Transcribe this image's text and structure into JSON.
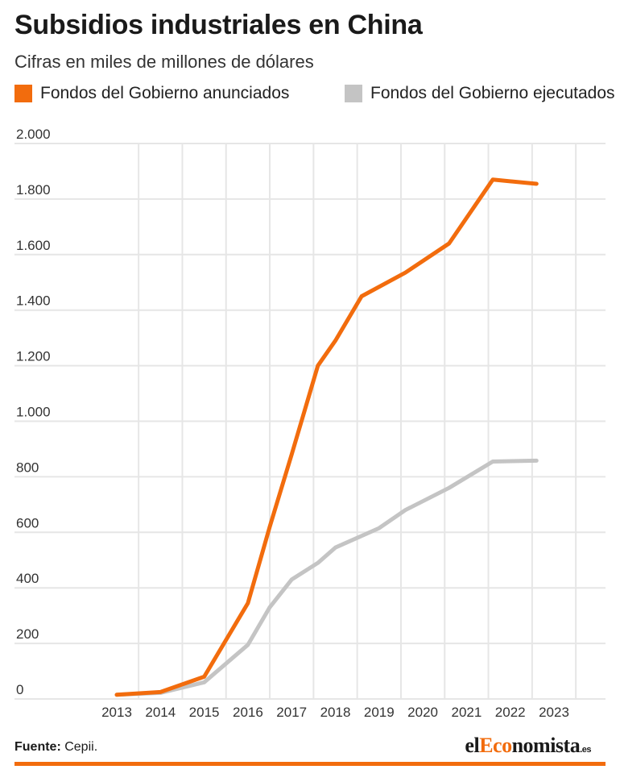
{
  "header": {
    "title": "Subsidios industriales en China",
    "subtitle": "Cifras en miles de millones de dólares"
  },
  "legend": {
    "announced": "Fondos del Gobierno anunciados",
    "executed": "Fondos del Gobierno ejecutados"
  },
  "footer": {
    "source_label": "Fuente:",
    "source_value": " Cepii.",
    "brand_prefix": "el",
    "brand_accent": "Eco",
    "brand_rest": "nomista",
    "brand_suffix": ".es"
  },
  "colors": {
    "announced": "#f26c0d",
    "executed": "#c4c4c4",
    "grid": "#e6e6e6",
    "accent_bar": "#f26c0d"
  },
  "chart_data": {
    "type": "line",
    "title": "Subsidios industriales en China",
    "subtitle": "Cifras en miles de millones de dólares",
    "xlabel": "",
    "ylabel": "",
    "ylim": [
      0,
      2000
    ],
    "yticks": [
      0,
      200,
      400,
      600,
      800,
      1000,
      1200,
      1400,
      1600,
      1800,
      2000
    ],
    "ytick_labels": [
      "0",
      "200",
      "400",
      "600",
      "800",
      "1.000",
      "1.200",
      "1.400",
      "1.600",
      "1.800",
      "2.000"
    ],
    "x_categories": [
      "2013",
      "2014",
      "2015",
      "2016",
      "2017",
      "2018",
      "2019",
      "2020",
      "2021",
      "2022",
      "2023"
    ],
    "grid": true,
    "legend_position": "top",
    "series": [
      {
        "name": "Fondos del Gobierno anunciados",
        "color": "#f26c0d",
        "points": [
          [
            2013.0,
            15
          ],
          [
            2014.0,
            25
          ],
          [
            2015.0,
            80
          ],
          [
            2016.0,
            345
          ],
          [
            2016.5,
            620
          ],
          [
            2017.0,
            880
          ],
          [
            2017.6,
            1200
          ],
          [
            2018.0,
            1290
          ],
          [
            2018.6,
            1450
          ],
          [
            2019.6,
            1535
          ],
          [
            2020.6,
            1640
          ],
          [
            2021.6,
            1870
          ],
          [
            2022.6,
            1855
          ]
        ]
      },
      {
        "name": "Fondos del Gobierno ejecutados",
        "color": "#c4c4c4",
        "points": [
          [
            2013.0,
            15
          ],
          [
            2014.0,
            22
          ],
          [
            2015.0,
            60
          ],
          [
            2016.0,
            195
          ],
          [
            2016.5,
            330
          ],
          [
            2017.0,
            430
          ],
          [
            2017.6,
            490
          ],
          [
            2018.0,
            545
          ],
          [
            2019.0,
            615
          ],
          [
            2019.6,
            680
          ],
          [
            2020.6,
            760
          ],
          [
            2021.6,
            855
          ],
          [
            2022.6,
            858
          ]
        ]
      }
    ]
  }
}
